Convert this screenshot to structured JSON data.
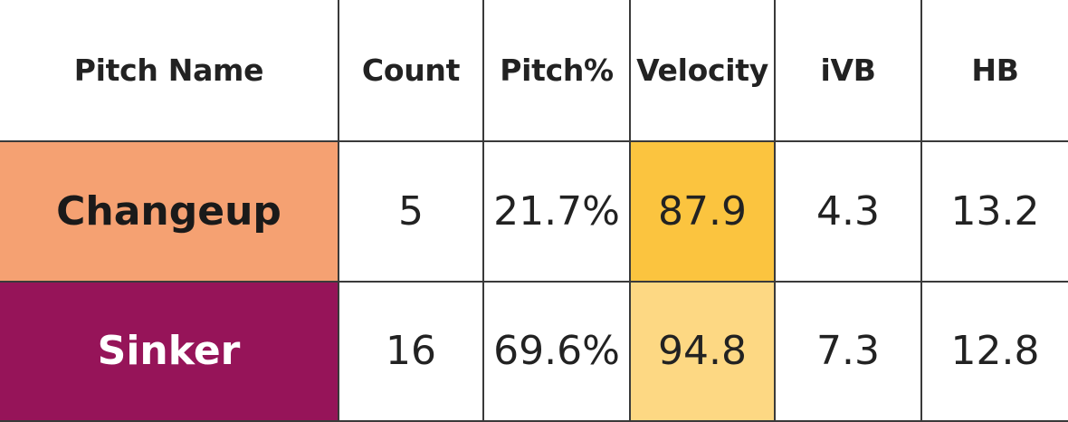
{
  "chart_data": {
    "type": "table",
    "columns": [
      "Pitch Name",
      "Count",
      "Pitch%",
      "Velocity",
      "iVB",
      "HB"
    ],
    "rows": [
      {
        "pitch_name": "Changeup",
        "count": "5",
        "pitch_pct": "21.7%",
        "velocity": "87.9",
        "ivb": "4.3",
        "hb": "13.2",
        "name_bg": "#f5a172",
        "name_color": "#1a1a1a",
        "velocity_bg": "#fbc43f"
      },
      {
        "pitch_name": "Sinker",
        "count": "16",
        "pitch_pct": "69.6%",
        "velocity": "94.8",
        "ivb": "7.3",
        "hb": "12.8",
        "name_bg": "#961459",
        "name_color": "#ffffff",
        "velocity_bg": "#fdd883"
      }
    ]
  }
}
